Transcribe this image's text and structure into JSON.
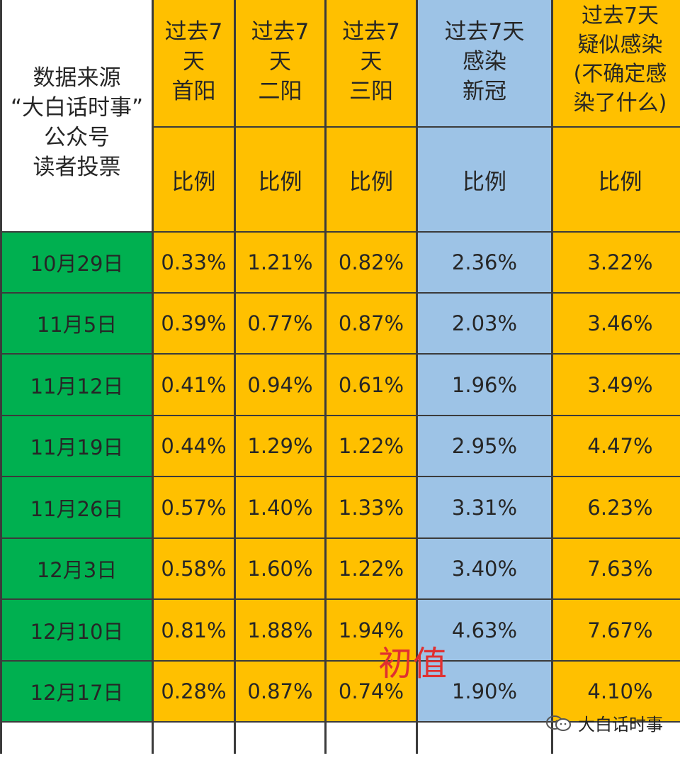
{
  "header": {
    "source_lines": [
      "数据来源",
      "“大白话时事”",
      "公众号",
      "读者投票"
    ],
    "columns": [
      {
        "lines": [
          "过去7",
          "天",
          "首阳"
        ],
        "color": "#ffc000"
      },
      {
        "lines": [
          "过去7",
          "天",
          "二阳"
        ],
        "color": "#ffc000"
      },
      {
        "lines": [
          "过去7",
          "天",
          "三阳"
        ],
        "color": "#ffc000"
      },
      {
        "lines": [
          "过去7天",
          "感染",
          "新冠"
        ],
        "color": "#9dc3e6"
      },
      {
        "lines": [
          "过去7天",
          "疑似感染",
          "(不确定感",
          "染了什么)"
        ],
        "color": "#ffc000"
      }
    ],
    "ratio_label": "比例"
  },
  "rows": [
    {
      "date": "10月29日",
      "values": [
        "0.33%",
        "1.21%",
        "0.82%",
        "2.36%",
        "3.22%"
      ]
    },
    {
      "date": "11月5日",
      "values": [
        "0.39%",
        "0.77%",
        "0.87%",
        "2.03%",
        "3.46%"
      ]
    },
    {
      "date": "11月12日",
      "values": [
        "0.41%",
        "0.94%",
        "0.61%",
        "1.96%",
        "3.49%"
      ]
    },
    {
      "date": "11月19日",
      "values": [
        "0.44%",
        "1.29%",
        "1.22%",
        "2.95%",
        "4.47%"
      ]
    },
    {
      "date": "11月26日",
      "values": [
        "0.57%",
        "1.40%",
        "1.33%",
        "3.31%",
        "6.23%"
      ]
    },
    {
      "date": "12月3日",
      "values": [
        "0.58%",
        "1.60%",
        "1.22%",
        "3.40%",
        "7.63%"
      ]
    },
    {
      "date": "12月10日",
      "values": [
        "0.81%",
        "1.88%",
        "1.94%",
        "4.63%",
        "7.67%"
      ]
    },
    {
      "date": "12月17日",
      "values": [
        "0.28%",
        "0.87%",
        "0.74%",
        "1.90%",
        "4.10%"
      ]
    }
  ],
  "annotation": "初值",
  "watermark": {
    "text": "大白话时事",
    "icon": "wechat-icon"
  },
  "colors": {
    "date_bg": "#00b050",
    "yellow": "#ffc000",
    "blue": "#9dc3e6",
    "annotation": "#e03030"
  }
}
